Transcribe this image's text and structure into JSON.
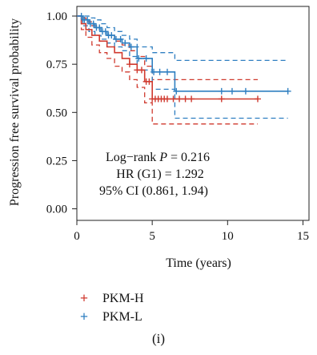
{
  "chart_data": {
    "type": "line",
    "title": "",
    "xlabel": "Time (years)",
    "ylabel": "Progression free survival probability",
    "xlim": [
      0,
      15
    ],
    "ylim": [
      0,
      1
    ],
    "x_ticks": [
      0,
      5,
      10,
      15
    ],
    "x_tick_labels": [
      "0",
      "5",
      "10",
      "15"
    ],
    "y_ticks": [
      0,
      0.25,
      0.5,
      0.75,
      1.0
    ],
    "y_tick_labels": [
      "0.00",
      "0.25",
      "0.50",
      "0.75",
      "1.00"
    ],
    "grid": false,
    "legend_position": "bottom",
    "annotation": {
      "line1": "Log−rank P = 0.216",
      "line2": "HR (G1) = 1.292",
      "line3": "95% CI (0.861, 1.94)"
    },
    "series": [
      {
        "name": "PKM-H",
        "color": "#d03a2f",
        "survival": {
          "x": [
            0,
            0.3,
            0.6,
            1.0,
            1.5,
            2.0,
            2.5,
            3.0,
            3.5,
            4.0,
            4.5,
            5.0,
            6.0,
            12.0
          ],
          "y": [
            1.0,
            0.96,
            0.93,
            0.9,
            0.87,
            0.84,
            0.81,
            0.78,
            0.75,
            0.72,
            0.66,
            0.57,
            0.57,
            0.57
          ]
        },
        "ci_upper": {
          "x": [
            0,
            0.3,
            0.6,
            1.0,
            1.5,
            2.0,
            2.5,
            3.0,
            3.5,
            4.0,
            4.5,
            5.0,
            6.0,
            12.0
          ],
          "y": [
            1.0,
            0.99,
            0.97,
            0.95,
            0.92,
            0.9,
            0.87,
            0.85,
            0.82,
            0.79,
            0.74,
            0.67,
            0.67,
            0.67
          ]
        },
        "ci_lower": {
          "x": [
            0,
            0.3,
            0.6,
            1.0,
            1.5,
            2.0,
            2.5,
            3.0,
            3.5,
            4.0,
            4.5,
            5.0,
            6.0,
            12.0
          ],
          "y": [
            1.0,
            0.93,
            0.89,
            0.85,
            0.81,
            0.78,
            0.74,
            0.71,
            0.67,
            0.63,
            0.55,
            0.44,
            0.44,
            0.44
          ]
        },
        "censor_x": [
          3.5,
          4.0,
          4.3,
          4.6,
          4.8,
          5.0,
          5.2,
          5.4,
          5.6,
          5.8,
          6.0,
          6.4,
          6.8,
          7.2,
          7.6,
          9.6,
          12.0
        ]
      },
      {
        "name": "PKM-L",
        "color": "#2f7fc1",
        "survival": {
          "x": [
            0,
            0.4,
            0.8,
            1.2,
            1.6,
            2.0,
            2.5,
            3.0,
            3.5,
            4.0,
            5.0,
            6.5,
            14.0
          ],
          "y": [
            1.0,
            0.98,
            0.96,
            0.94,
            0.92,
            0.9,
            0.88,
            0.86,
            0.84,
            0.78,
            0.71,
            0.61,
            0.61
          ]
        },
        "ci_upper": {
          "x": [
            0,
            0.4,
            0.8,
            1.2,
            1.6,
            2.0,
            2.5,
            3.0,
            3.5,
            4.0,
            5.0,
            6.5,
            14.0
          ],
          "y": [
            1.0,
            1.0,
            0.99,
            0.98,
            0.96,
            0.94,
            0.92,
            0.9,
            0.88,
            0.84,
            0.81,
            0.77,
            0.77
          ]
        },
        "ci_lower": {
          "x": [
            0,
            0.4,
            0.8,
            1.2,
            1.6,
            2.0,
            2.5,
            3.0,
            3.5,
            4.0,
            5.0,
            6.5,
            14.0
          ],
          "y": [
            1.0,
            0.95,
            0.92,
            0.9,
            0.88,
            0.86,
            0.84,
            0.82,
            0.79,
            0.72,
            0.62,
            0.47,
            0.47
          ]
        },
        "censor_x": [
          0.3,
          0.5,
          0.7,
          0.9,
          1.1,
          1.3,
          1.5,
          1.7,
          1.9,
          2.1,
          2.3,
          2.6,
          2.9,
          3.2,
          3.6,
          4.1,
          4.6,
          5.1,
          5.5,
          6.0,
          6.6,
          9.6,
          10.3,
          11.2,
          14.0
        ]
      }
    ]
  },
  "legend": {
    "items": [
      {
        "label": "PKM-H",
        "color": "#d03a2f"
      },
      {
        "label": "PKM-L",
        "color": "#2f7fc1"
      }
    ],
    "marker_glyph": "+"
  },
  "panel_label": "(i)"
}
